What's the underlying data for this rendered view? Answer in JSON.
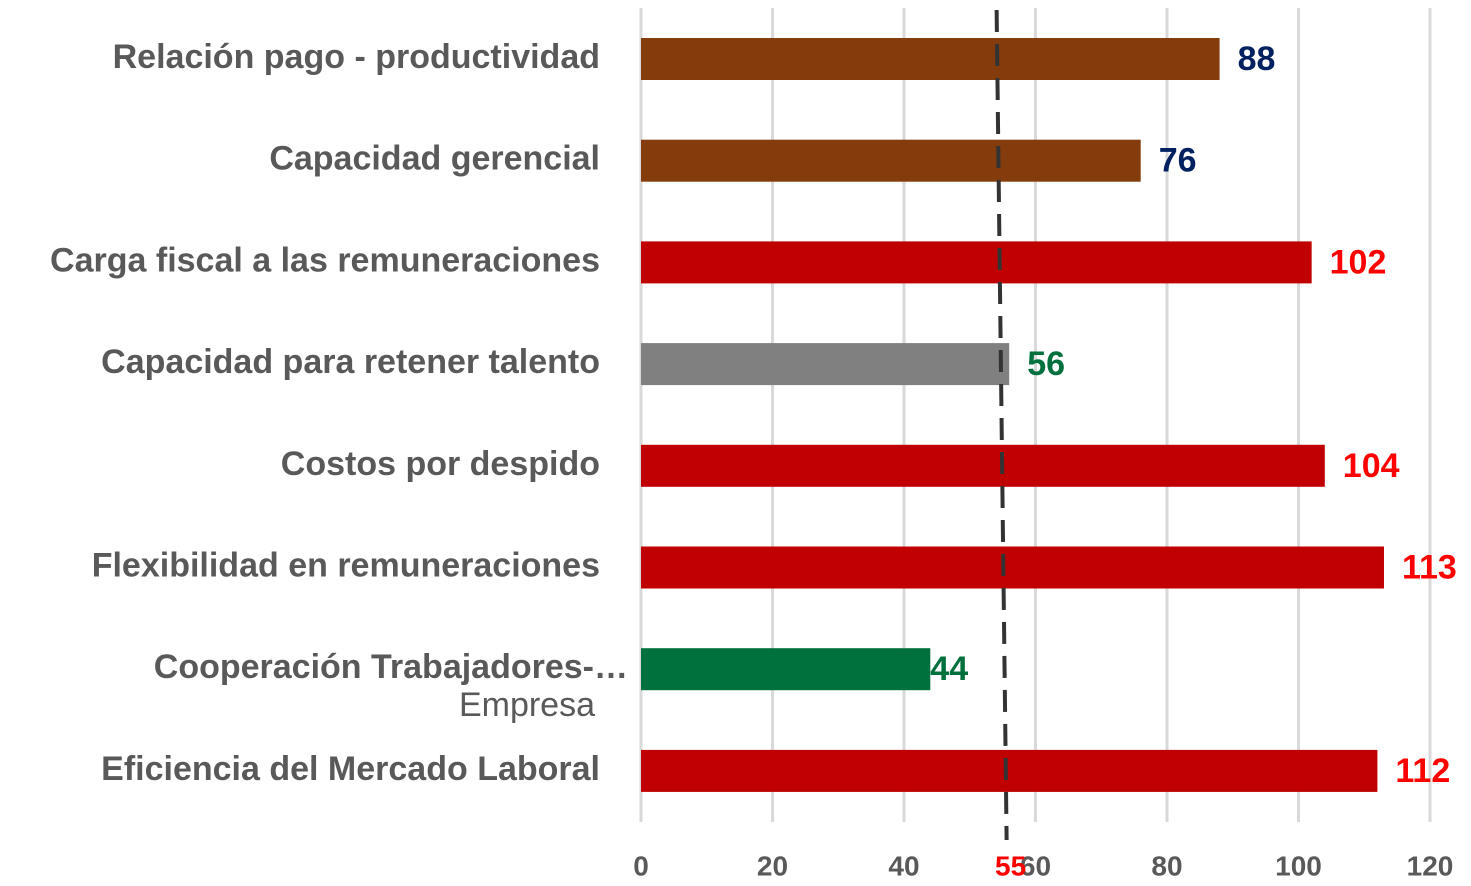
{
  "chart_data": {
    "type": "barh",
    "categories": [
      "Relación pago - productividad",
      "Capacidad gerencial",
      "Carga fiscal a las remuneraciones",
      "Capacidad para retener talento",
      "Costos por despido",
      "Flexibilidad en remuneraciones",
      "Cooperación Trabajadores-…\nEmpresa",
      "Eficiencia del Mercado Laboral"
    ],
    "values": [
      88,
      76,
      102,
      56,
      104,
      113,
      44,
      112
    ],
    "colors": [
      "#843c0c",
      "#843c0c",
      "#c00000",
      "#808080",
      "#c00000",
      "#c00000",
      "#00703c",
      "#c00000"
    ],
    "label_colors": [
      "#002060",
      "#002060",
      "#ff0000",
      "#00703c",
      "#ff0000",
      "#ff0000",
      "#00703c",
      "#ff0000"
    ],
    "xlim": [
      0,
      120
    ],
    "xticks": [
      0,
      20,
      40,
      60,
      80,
      100,
      120
    ],
    "grid": true,
    "reference_line": 55,
    "reference_color": "#333333",
    "reference_label_color": "#ff0000"
  }
}
